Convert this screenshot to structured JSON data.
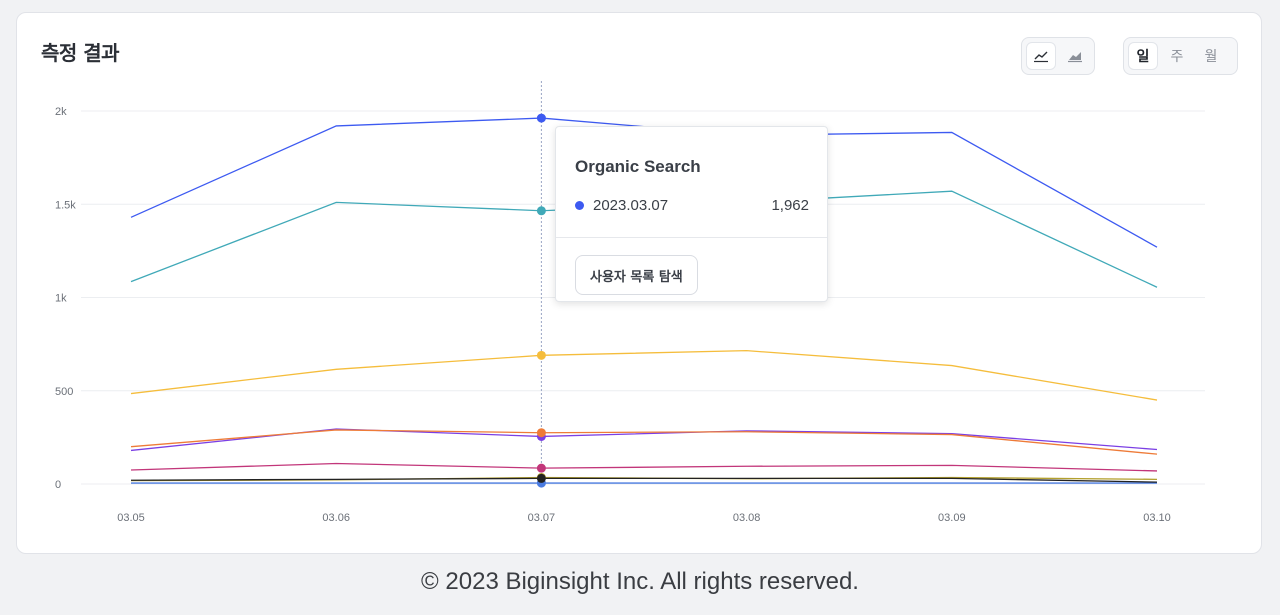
{
  "card": {
    "title": "측정 결과"
  },
  "chart_type_toggle": [
    {
      "name": "line-chart",
      "active": true
    },
    {
      "name": "area-chart",
      "active": false
    }
  ],
  "period_toggle": [
    {
      "label": "일",
      "active": true
    },
    {
      "label": "주",
      "active": false
    },
    {
      "label": "월",
      "active": false
    }
  ],
  "tooltip": {
    "title": "Organic Search",
    "date": "2023.03.07",
    "value": "1,962",
    "dot_color": "#3d5af1",
    "button_label": "사용자 목록 탐색"
  },
  "footer": {
    "text": "© 2023 Biginsight Inc. All rights reserved."
  },
  "chart_data": {
    "type": "line",
    "categories": [
      "03.05",
      "03.06",
      "03.07",
      "03.08",
      "03.09",
      "03.10"
    ],
    "y_ticks": [
      {
        "value": 0,
        "label": "0"
      },
      {
        "value": 500,
        "label": "500"
      },
      {
        "value": 1000,
        "label": "1k"
      },
      {
        "value": 1500,
        "label": "1.5k"
      },
      {
        "value": 2000,
        "label": "2k"
      }
    ],
    "ylim": [
      0,
      2000
    ],
    "grid": true,
    "highlight_index": 2,
    "series": [
      {
        "color": "#3d5af1",
        "values": [
          1430,
          1920,
          1962,
          1870,
          1885,
          1270
        ]
      },
      {
        "color": "#40a9b8",
        "values": [
          1085,
          1510,
          1465,
          1510,
          1570,
          1055
        ]
      },
      {
        "color": "#f5bd3c",
        "values": [
          485,
          615,
          690,
          715,
          635,
          450
        ]
      },
      {
        "color": "#ee7b38",
        "values": [
          200,
          290,
          275,
          280,
          265,
          160
        ]
      },
      {
        "color": "#7b3fe4",
        "values": [
          180,
          295,
          255,
          285,
          270,
          185
        ]
      },
      {
        "color": "#c2367a",
        "values": [
          75,
          110,
          85,
          95,
          100,
          70
        ]
      },
      {
        "color": "#222222",
        "values": [
          20,
          25,
          30,
          30,
          30,
          10
        ]
      },
      {
        "color": "#b3a02e",
        "values": [
          18,
          22,
          35,
          28,
          35,
          25
        ]
      },
      {
        "color": "#4a7be0",
        "values": [
          5,
          5,
          5,
          5,
          5,
          5
        ]
      }
    ]
  }
}
